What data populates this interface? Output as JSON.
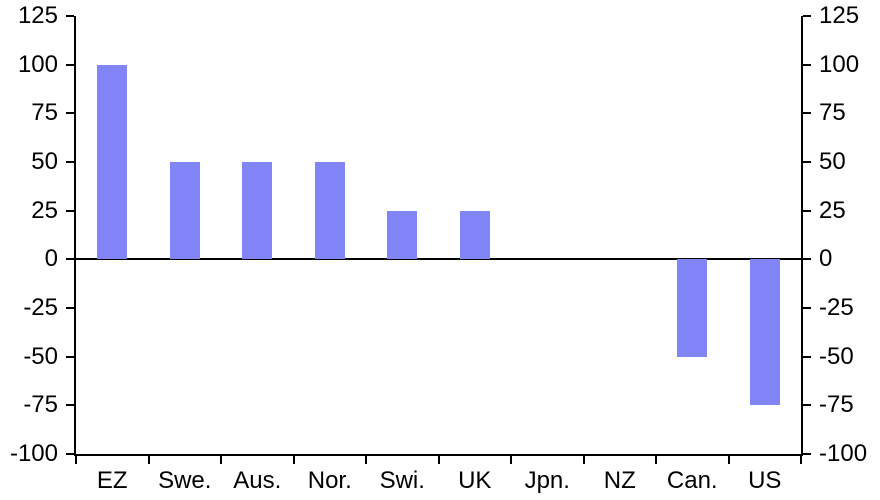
{
  "chart_data": {
    "type": "bar",
    "title": "",
    "xlabel": "",
    "ylabel": "",
    "categories": [
      "EZ",
      "Swe.",
      "Aus.",
      "Nor.",
      "Swi.",
      "UK",
      "Jpn.",
      "NZ",
      "Can.",
      "US"
    ],
    "values": [
      100,
      50,
      50,
      50,
      25,
      25,
      0,
      0,
      -50,
      -75
    ],
    "ylim": [
      -100,
      125
    ],
    "yticks": [
      125,
      100,
      75,
      50,
      25,
      0,
      -25,
      -50,
      -75,
      -100
    ],
    "ytick_step": 25,
    "dual_y_axis": true,
    "grid": false,
    "legend": null,
    "zero_line": true,
    "colors": {
      "bar": "#8285F8",
      "axis": "#000000",
      "text": "#000000",
      "background": "#FFFFFF"
    }
  }
}
